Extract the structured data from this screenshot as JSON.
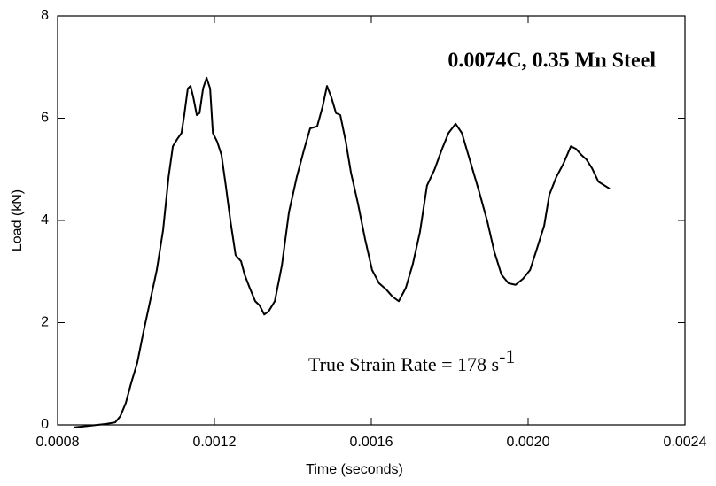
{
  "chart_data": {
    "type": "line",
    "xlabel": "Time (seconds)",
    "ylabel": "Load (kN)",
    "annotations": [
      {
        "text": "0.0074C, 0.35 Mn Steel"
      },
      {
        "text": "True Strain Rate = 178 s",
        "superscript": "-1"
      }
    ],
    "xlim": [
      0.0008,
      0.0024
    ],
    "ylim": [
      0,
      8
    ],
    "xticks": [
      0.0008,
      0.0012,
      0.0016,
      {
        "value": 0.002,
        "label": "0.0020"
      },
      0.0024
    ],
    "yticks": [
      0,
      2,
      4,
      6,
      8
    ],
    "series": [
      {
        "color": "#000000",
        "x": [
          0.000841,
          0.000879,
          0.000924,
          0.000947,
          0.00096,
          0.000974,
          0.000988,
          0.001003,
          0.001019,
          0.001037,
          0.001053,
          0.001069,
          0.001083,
          0.001094,
          0.001105,
          0.001116,
          0.001123,
          0.001132,
          0.001139,
          0.001146,
          0.001155,
          0.001162,
          0.001171,
          0.00118,
          0.001189,
          0.001196,
          0.001207,
          0.001218,
          0.001229,
          0.001241,
          0.001254,
          0.001268,
          0.001277,
          0.00129,
          0.001304,
          0.001315,
          0.001327,
          0.001338,
          0.001354,
          0.001372,
          0.00139,
          0.00141,
          0.001428,
          0.001444,
          0.001462,
          0.001476,
          0.001487,
          0.001498,
          0.00151,
          0.001521,
          0.001535,
          0.001548,
          0.001566,
          0.001584,
          0.001602,
          0.00162,
          0.001638,
          0.001654,
          0.00167,
          0.001688,
          0.001706,
          0.001724,
          0.001742,
          0.001761,
          0.001779,
          0.001797,
          0.001815,
          0.001831,
          0.001851,
          0.001874,
          0.001896,
          0.001914,
          0.001932,
          0.00195,
          0.001968,
          0.001987,
          0.002005,
          0.002023,
          0.002041,
          0.002054,
          0.002072,
          0.00209,
          0.002109,
          0.002122,
          0.002136,
          0.002149,
          0.002163,
          0.002179,
          0.002208
        ],
        "values": [
          -0.05,
          -0.02,
          0.02,
          0.05,
          0.17,
          0.43,
          0.83,
          1.21,
          1.82,
          2.46,
          3.03,
          3.81,
          4.85,
          5.45,
          5.59,
          5.71,
          6.06,
          6.58,
          6.63,
          6.41,
          6.06,
          6.1,
          6.58,
          6.79,
          6.58,
          5.71,
          5.54,
          5.28,
          4.68,
          3.98,
          3.32,
          3.2,
          2.94,
          2.68,
          2.42,
          2.34,
          2.16,
          2.22,
          2.42,
          3.12,
          4.16,
          4.85,
          5.37,
          5.8,
          5.84,
          6.23,
          6.63,
          6.41,
          6.1,
          6.06,
          5.54,
          4.94,
          4.33,
          3.64,
          3.03,
          2.77,
          2.65,
          2.51,
          2.42,
          2.68,
          3.15,
          3.77,
          4.68,
          4.99,
          5.37,
          5.71,
          5.89,
          5.71,
          5.19,
          4.59,
          3.98,
          3.38,
          2.94,
          2.77,
          2.74,
          2.86,
          3.03,
          3.46,
          3.9,
          4.5,
          4.85,
          5.11,
          5.45,
          5.4,
          5.28,
          5.19,
          5.02,
          4.76,
          4.62
        ]
      }
    ]
  }
}
